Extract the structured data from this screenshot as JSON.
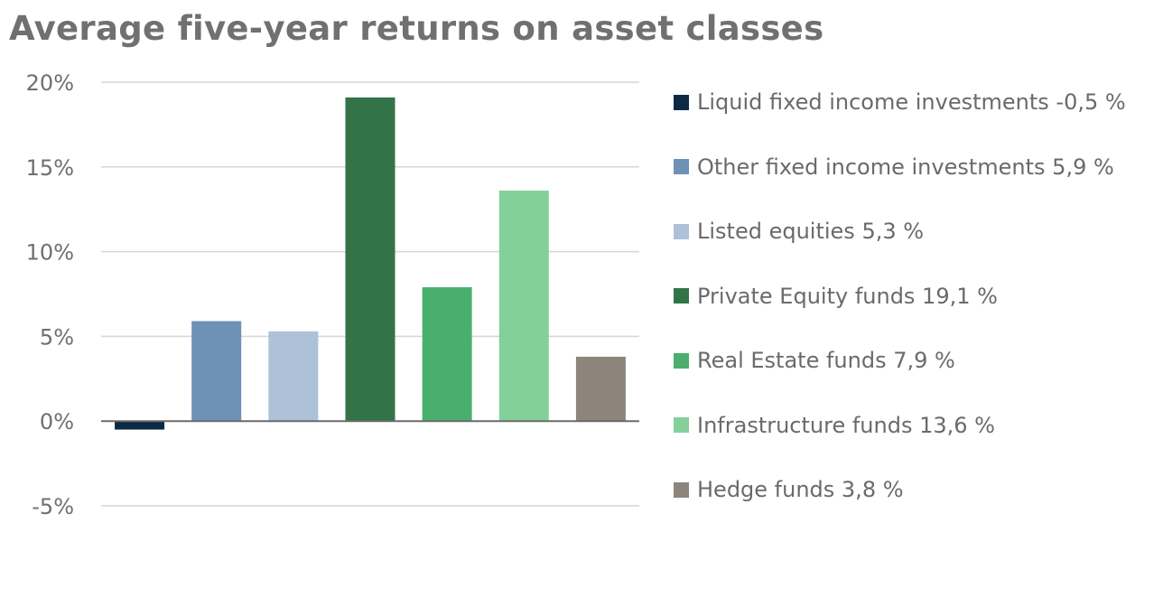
{
  "title": "Average five-year returns on asset classes",
  "chart_data": {
    "type": "bar",
    "title": "Average five-year returns on asset classes",
    "xlabel": "",
    "ylabel": "",
    "ylim": [
      -5,
      20
    ],
    "yticks": [
      20,
      15,
      10,
      5,
      0,
      -5
    ],
    "ytick_labels": [
      "20%",
      "15%",
      "10%",
      "5%",
      "0%",
      "-5%"
    ],
    "grid": true,
    "legend_position": "right",
    "categories": [
      "Liquid fixed income investments",
      "Other fixed income investments",
      "Listed equities",
      "Private Equity funds",
      "Real Estate funds",
      "Infrastructure funds",
      "Hedge funds"
    ],
    "values": [
      -0.5,
      5.9,
      5.3,
      19.1,
      7.9,
      13.6,
      3.8
    ],
    "colors": [
      "#0d2a45",
      "#6e91b6",
      "#adc1d9",
      "#327447",
      "#4aaf6e",
      "#83d09a",
      "#8d857c"
    ],
    "legend": [
      "Liquid fixed income investments -0,5 %",
      "Other fixed income investments 5,9 %",
      "Listed equities 5,3 %",
      "Private Equity funds 19,1 %",
      "Real Estate funds 7,9 %",
      "Infrastructure funds 13,6 %",
      "Hedge funds 3,8 %"
    ]
  }
}
